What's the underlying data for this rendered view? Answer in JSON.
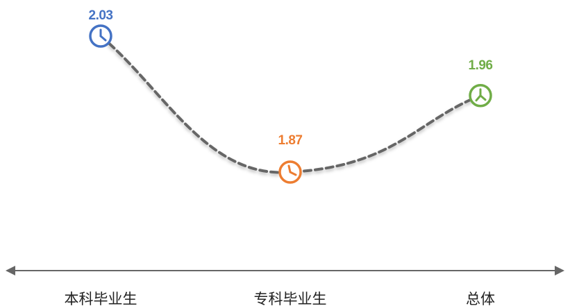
{
  "chart_data": {
    "type": "line",
    "title": "",
    "xlabel": "",
    "ylabel": "",
    "categories": [
      "本科毕业生",
      "专科毕业生",
      "总体"
    ],
    "series": [
      {
        "values": [
          2.03,
          1.87,
          1.96
        ]
      }
    ],
    "data_labels": [
      "2.03",
      "1.87",
      "1.96"
    ],
    "point_colors": [
      "#4472C4",
      "#ED7D31",
      "#70AD47"
    ],
    "line_color": "#666666",
    "line_style": "dashed",
    "marker_icon": "clock-icon",
    "axis_color": "#666666",
    "grid": false
  }
}
